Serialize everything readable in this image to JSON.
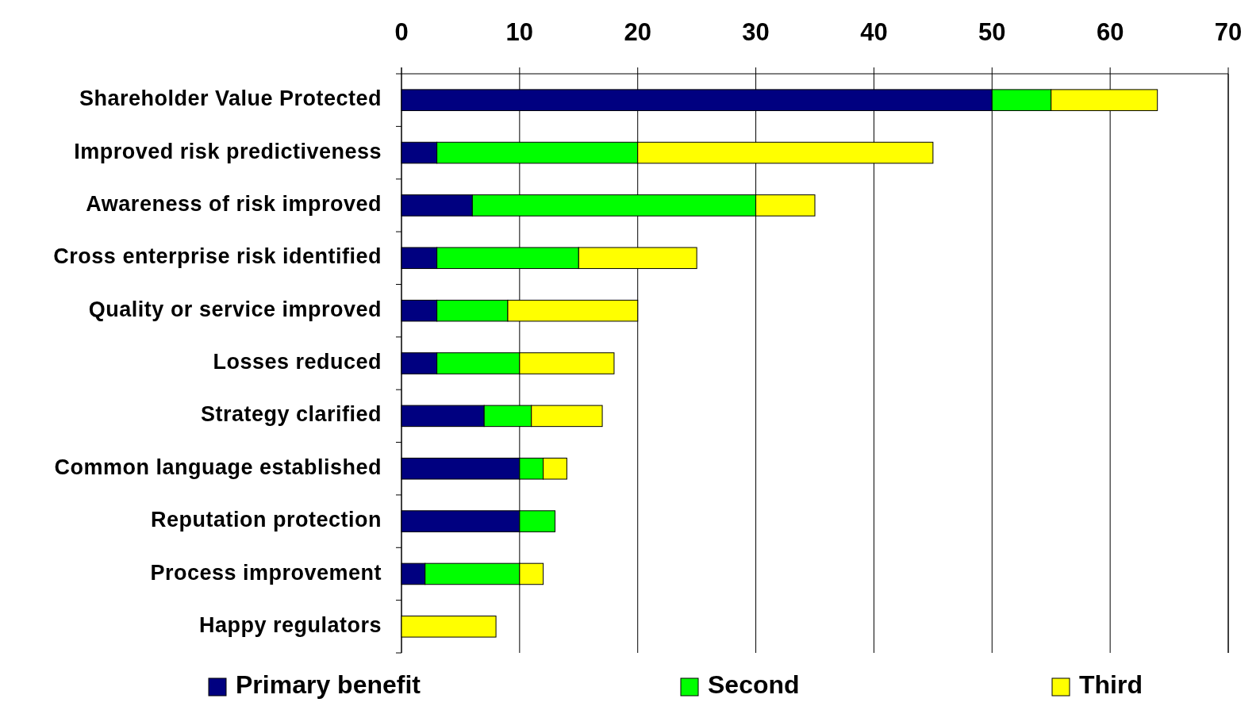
{
  "chart_data": {
    "type": "bar",
    "orientation": "horizontal",
    "stacked": true,
    "categories": [
      "Shareholder Value Protected",
      "Improved risk predictiveness",
      "Awareness of risk improved",
      "Cross enterprise risk identified",
      "Quality or service improved",
      "Losses reduced",
      "Strategy clarified",
      "Common language established",
      "Reputation protection",
      "Process improvement",
      "Happy regulators"
    ],
    "series": [
      {
        "name": "Primary benefit",
        "color": "#000080",
        "values": [
          50,
          3,
          6,
          3,
          3,
          3,
          7,
          10,
          10,
          2,
          0
        ]
      },
      {
        "name": "Second",
        "color": "#00ff00",
        "values": [
          5,
          17,
          24,
          12,
          6,
          7,
          4,
          2,
          3,
          8,
          0
        ]
      },
      {
        "name": "Third",
        "color": "#ffff00",
        "values": [
          9,
          25,
          5,
          10,
          11,
          8,
          6,
          2,
          0,
          2,
          8
        ]
      }
    ],
    "xlim": [
      0,
      70
    ],
    "xticks": [
      0,
      10,
      20,
      30,
      40,
      50,
      60,
      70
    ],
    "grid": "x",
    "legend": "bottom"
  }
}
